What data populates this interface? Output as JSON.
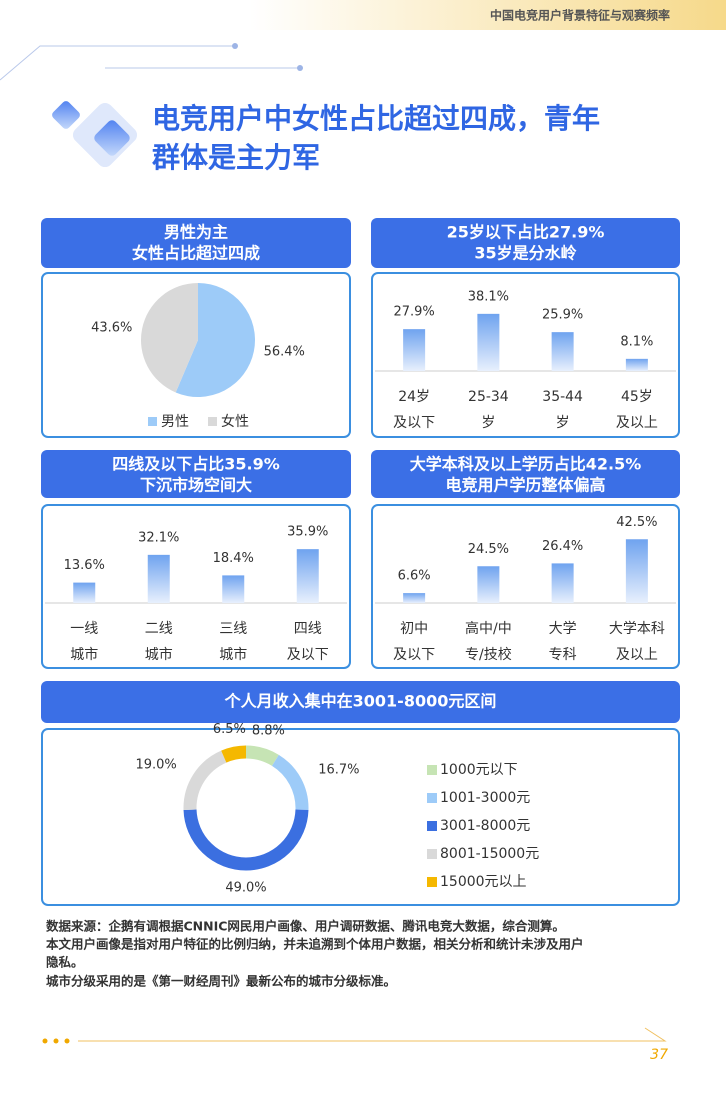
{
  "header": "中国电竞用户背景特征与观赛频率",
  "title": [
    "电竞用户中女性占比超过四成，青年",
    "群体是主力军"
  ],
  "chart_data": [
    {
      "type": "pie",
      "title": "男性为主",
      "subtitle": "女性占比超过四成",
      "categories": [
        "男性",
        "女性"
      ],
      "values": [
        56.4,
        43.6
      ],
      "value_labels": [
        "56.4%",
        "43.6%"
      ],
      "colors": [
        "#9dcbf8",
        "#d9d9d9"
      ]
    },
    {
      "type": "bar",
      "title": "25岁以下占比27.9%",
      "subtitle": "35岁是分水岭",
      "categories": [
        [
          "24岁",
          "及以下"
        ],
        [
          "25-34",
          "岁"
        ],
        [
          "35-44",
          "岁"
        ],
        [
          "45岁",
          "及以上"
        ]
      ],
      "values": [
        27.9,
        38.1,
        25.9,
        8.1
      ],
      "value_labels": [
        "27.9%",
        "38.1%",
        "25.9%",
        "8.1%"
      ],
      "color": "#6fa3ef"
    },
    {
      "type": "bar",
      "title": "四线及以下占比35.9%",
      "subtitle": "下沉市场空间大",
      "categories": [
        [
          "一线",
          "城市"
        ],
        [
          "二线",
          "城市"
        ],
        [
          "三线",
          "城市"
        ],
        [
          "四线",
          "及以下"
        ]
      ],
      "values": [
        13.6,
        32.1,
        18.4,
        35.9
      ],
      "value_labels": [
        "13.6%",
        "32.1%",
        "18.4%",
        "35.9%"
      ],
      "color": "#6fa3ef"
    },
    {
      "type": "bar",
      "title": "大学本科及以上学历占比42.5%",
      "subtitle": "电竞用户学历整体偏高",
      "categories": [
        [
          "初中",
          "及以下"
        ],
        [
          "高中/中",
          "专/技校"
        ],
        [
          "大学",
          "专科"
        ],
        [
          "大学本科",
          "及以上"
        ]
      ],
      "values": [
        6.6,
        24.5,
        26.4,
        42.5
      ],
      "value_labels": [
        "6.6%",
        "24.5%",
        "26.4%",
        "42.5%"
      ],
      "color": "#6fa3ef"
    },
    {
      "type": "donut",
      "title": "个人月收入集中在3001-8000元区间",
      "categories": [
        "1000元以下",
        "1001-3000元",
        "3001-8000元",
        "8001-15000元",
        "15000元以上"
      ],
      "values": [
        8.8,
        16.7,
        49.0,
        19.0,
        6.5
      ],
      "value_labels": [
        "8.8%",
        "16.7%",
        "49.0%",
        "19.0%",
        "6.5%"
      ],
      "colors": [
        "#c6e4b4",
        "#9dcbf8",
        "#3b6fe0",
        "#d9d9d9",
        "#f5b800"
      ]
    }
  ],
  "notes": [
    "数据来源：企鹅有调根据CNNIC网民用户画像、用户调研数据、腾讯电竞大数据，综合测算。",
    "本文用户画像是指对用户特征的比例归纳，并未追溯到个体用户数据，相关分析和统计未涉及用户",
    "隐私。",
    "城市分级采用的是《第一财经周刊》最新公布的城市分级标准。"
  ],
  "page_number": "37"
}
